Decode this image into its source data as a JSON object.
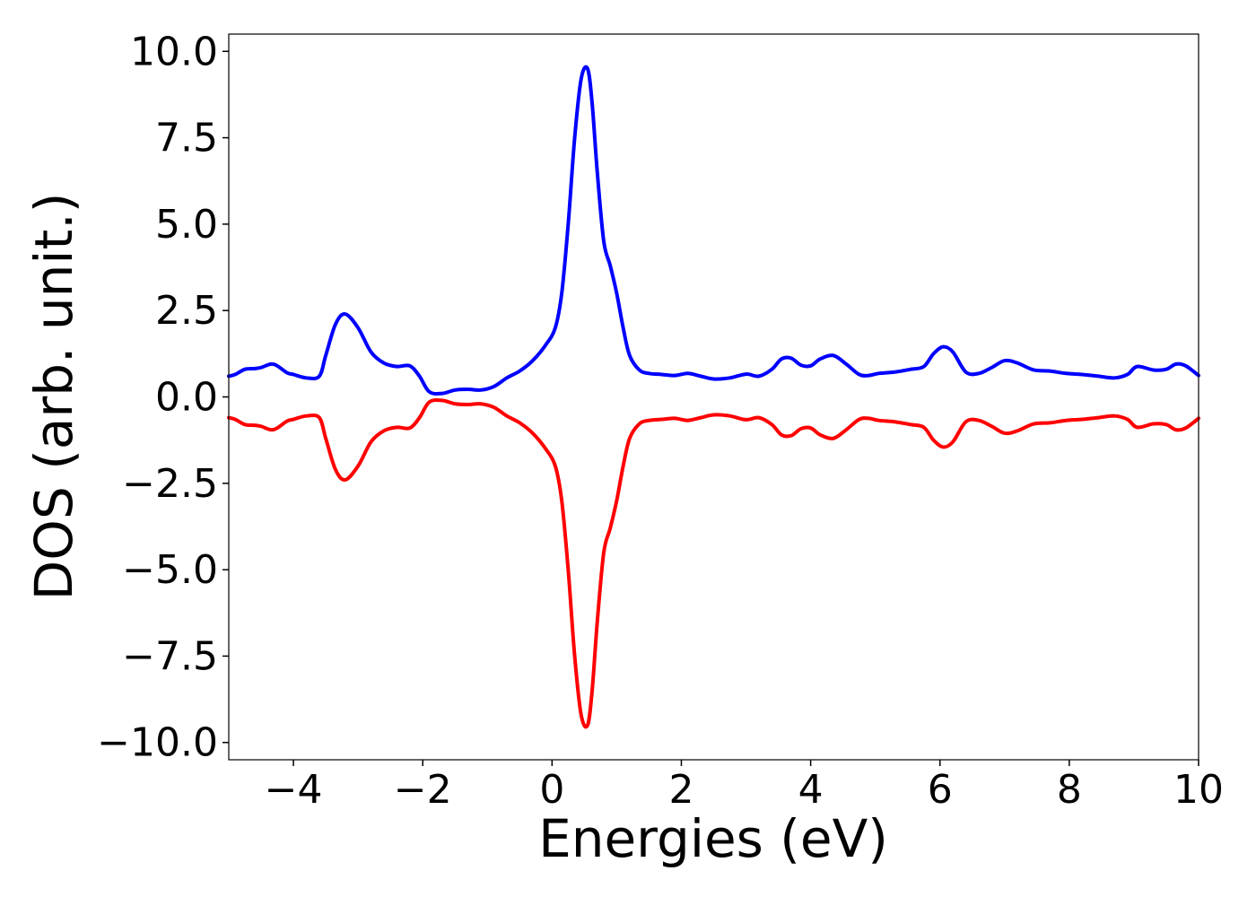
{
  "chart_data": {
    "type": "line",
    "title": "",
    "xlabel": "Energies (eV)",
    "ylabel": "DOS (arb. unit.)",
    "xlim": [
      -5,
      10
    ],
    "ylim": [
      -10.5,
      10.5
    ],
    "xticks": [
      -4,
      -2,
      0,
      2,
      4,
      6,
      8,
      10
    ],
    "xtick_labels": [
      "−4",
      "−2",
      "0",
      "2",
      "4",
      "6",
      "8",
      "10"
    ],
    "yticks": [
      10.0,
      7.5,
      5.0,
      2.5,
      0.0,
      -2.5,
      -5.0,
      -7.5,
      -10.0
    ],
    "ytick_labels": [
      "10.0",
      "7.5",
      "5.0",
      "2.5",
      "0.0",
      "−2.5",
      "−5.0",
      "−7.5",
      "−10.0"
    ],
    "grid": false,
    "legend": "none",
    "series": [
      {
        "color": "#0000ff",
        "x": [
          -5.0,
          -4.9,
          -4.75,
          -4.6,
          -4.5,
          -4.35,
          -4.25,
          -4.1,
          -4.0,
          -3.8,
          -3.6,
          -3.5,
          -3.35,
          -3.2,
          -3.0,
          -2.8,
          -2.6,
          -2.4,
          -2.2,
          -2.05,
          -1.9,
          -1.7,
          -1.5,
          -1.3,
          -1.1,
          -0.9,
          -0.7,
          -0.5,
          -0.3,
          -0.1,
          0.05,
          0.15,
          0.25,
          0.35,
          0.45,
          0.55,
          0.62,
          0.7,
          0.8,
          0.9,
          1.0,
          1.1,
          1.2,
          1.35,
          1.5,
          1.7,
          1.9,
          2.1,
          2.3,
          2.5,
          2.75,
          3.0,
          3.2,
          3.4,
          3.55,
          3.7,
          3.85,
          4.0,
          4.15,
          4.35,
          4.55,
          4.75,
          4.9,
          5.05,
          5.3,
          5.55,
          5.75,
          5.9,
          6.05,
          6.2,
          6.4,
          6.6,
          6.8,
          7.0,
          7.2,
          7.45,
          7.7,
          7.95,
          8.2,
          8.45,
          8.7,
          8.9,
          9.05,
          9.3,
          9.5,
          9.65,
          9.8,
          10.0
        ],
        "y": [
          0.6,
          0.65,
          0.8,
          0.82,
          0.85,
          0.95,
          0.9,
          0.7,
          0.65,
          0.55,
          0.6,
          1.2,
          2.1,
          2.4,
          2.0,
          1.3,
          0.98,
          0.88,
          0.9,
          0.6,
          0.15,
          0.1,
          0.2,
          0.22,
          0.2,
          0.3,
          0.55,
          0.75,
          1.05,
          1.5,
          2.0,
          3.0,
          5.0,
          7.5,
          9.2,
          9.5,
          8.5,
          6.5,
          4.5,
          3.8,
          3.0,
          2.0,
          1.2,
          0.78,
          0.68,
          0.65,
          0.62,
          0.68,
          0.6,
          0.52,
          0.55,
          0.66,
          0.6,
          0.8,
          1.1,
          1.12,
          0.92,
          0.9,
          1.1,
          1.2,
          0.95,
          0.65,
          0.62,
          0.68,
          0.72,
          0.8,
          0.88,
          1.25,
          1.45,
          1.3,
          0.72,
          0.68,
          0.85,
          1.05,
          0.98,
          0.78,
          0.75,
          0.68,
          0.65,
          0.6,
          0.55,
          0.65,
          0.88,
          0.78,
          0.8,
          0.95,
          0.9,
          0.62
        ]
      },
      {
        "color": "#ff0000",
        "x": [
          -5.0,
          -4.9,
          -4.75,
          -4.6,
          -4.5,
          -4.35,
          -4.25,
          -4.1,
          -4.0,
          -3.8,
          -3.6,
          -3.5,
          -3.35,
          -3.2,
          -3.0,
          -2.8,
          -2.6,
          -2.4,
          -2.2,
          -2.05,
          -1.9,
          -1.7,
          -1.5,
          -1.3,
          -1.1,
          -0.9,
          -0.7,
          -0.5,
          -0.3,
          -0.1,
          0.05,
          0.15,
          0.25,
          0.35,
          0.45,
          0.55,
          0.62,
          0.7,
          0.8,
          0.9,
          1.0,
          1.1,
          1.2,
          1.35,
          1.5,
          1.7,
          1.9,
          2.1,
          2.3,
          2.5,
          2.75,
          3.0,
          3.2,
          3.4,
          3.55,
          3.7,
          3.85,
          4.0,
          4.15,
          4.35,
          4.55,
          4.75,
          4.9,
          5.05,
          5.3,
          5.55,
          5.75,
          5.9,
          6.05,
          6.2,
          6.4,
          6.6,
          6.8,
          7.0,
          7.2,
          7.45,
          7.7,
          7.95,
          8.2,
          8.45,
          8.7,
          8.9,
          9.05,
          9.3,
          9.5,
          9.65,
          9.8,
          10.0
        ],
        "y": [
          -0.6,
          -0.65,
          -0.8,
          -0.82,
          -0.85,
          -0.95,
          -0.9,
          -0.7,
          -0.65,
          -0.55,
          -0.6,
          -1.2,
          -2.1,
          -2.4,
          -2.0,
          -1.3,
          -0.98,
          -0.88,
          -0.9,
          -0.6,
          -0.15,
          -0.1,
          -0.2,
          -0.22,
          -0.2,
          -0.3,
          -0.55,
          -0.75,
          -1.05,
          -1.5,
          -2.0,
          -3.0,
          -5.0,
          -7.5,
          -9.2,
          -9.5,
          -8.5,
          -6.5,
          -4.5,
          -3.8,
          -3.0,
          -2.0,
          -1.2,
          -0.78,
          -0.68,
          -0.65,
          -0.62,
          -0.68,
          -0.6,
          -0.52,
          -0.55,
          -0.66,
          -0.6,
          -0.8,
          -1.1,
          -1.12,
          -0.92,
          -0.9,
          -1.1,
          -1.2,
          -0.95,
          -0.65,
          -0.62,
          -0.68,
          -0.72,
          -0.8,
          -0.88,
          -1.25,
          -1.45,
          -1.3,
          -0.72,
          -0.68,
          -0.85,
          -1.05,
          -0.98,
          -0.78,
          -0.75,
          -0.68,
          -0.65,
          -0.6,
          -0.55,
          -0.65,
          -0.88,
          -0.78,
          -0.8,
          -0.95,
          -0.9,
          -0.62
        ]
      }
    ]
  }
}
